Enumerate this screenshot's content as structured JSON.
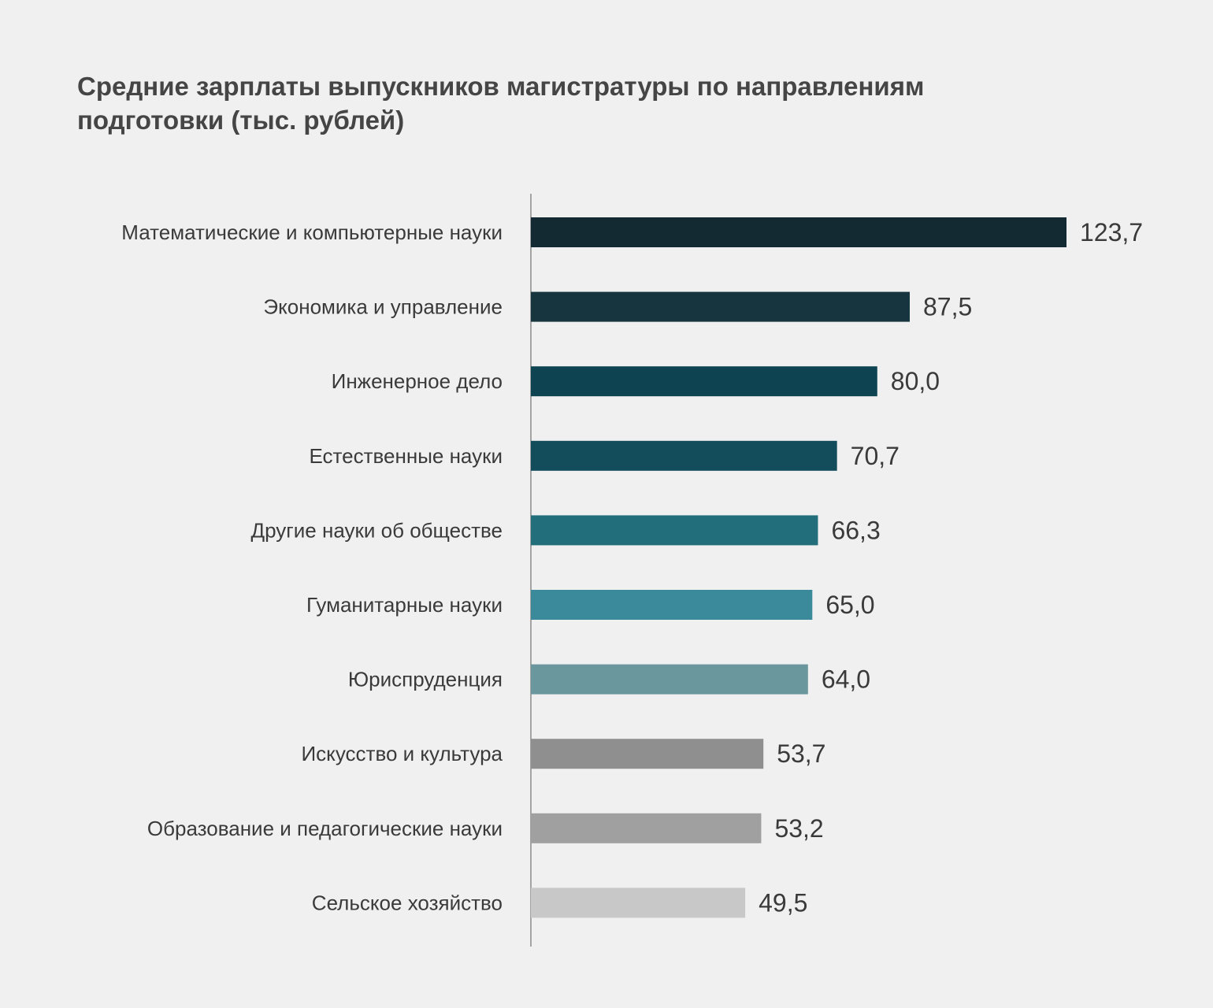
{
  "chart_data": {
    "type": "bar",
    "orientation": "horizontal",
    "title": "Средние зарплаты выпускников магистратуры по направлениям подготовки (тыс. рублей)",
    "categories": [
      "Математические и компьютерные науки",
      "Экономика и управление",
      "Инженерное дело",
      "Естественные науки",
      "Другие науки об обществе",
      "Гуманитарные науки",
      "Юриспруденция",
      "Искусство и культура",
      "Образование и педагогические науки",
      "Сельское хозяйство"
    ],
    "values": [
      123.7,
      87.5,
      80.0,
      70.7,
      66.3,
      65.0,
      64.0,
      53.7,
      53.2,
      49.5
    ],
    "value_labels": [
      "123,7",
      "87,5",
      "80,0",
      "70,7",
      "66,3",
      "65,0",
      "64,0",
      "53,7",
      "53,2",
      "49,5"
    ],
    "colors": [
      "#132a33",
      "#16353e",
      "#0e4452",
      "#134c5a",
      "#226e7a",
      "#3a8a9c",
      "#69979d",
      "#8f8f8f",
      "#a0a0a0",
      "#c8c8c8"
    ],
    "xlim": [
      0,
      123.7
    ],
    "grid": false,
    "legend": "none"
  }
}
